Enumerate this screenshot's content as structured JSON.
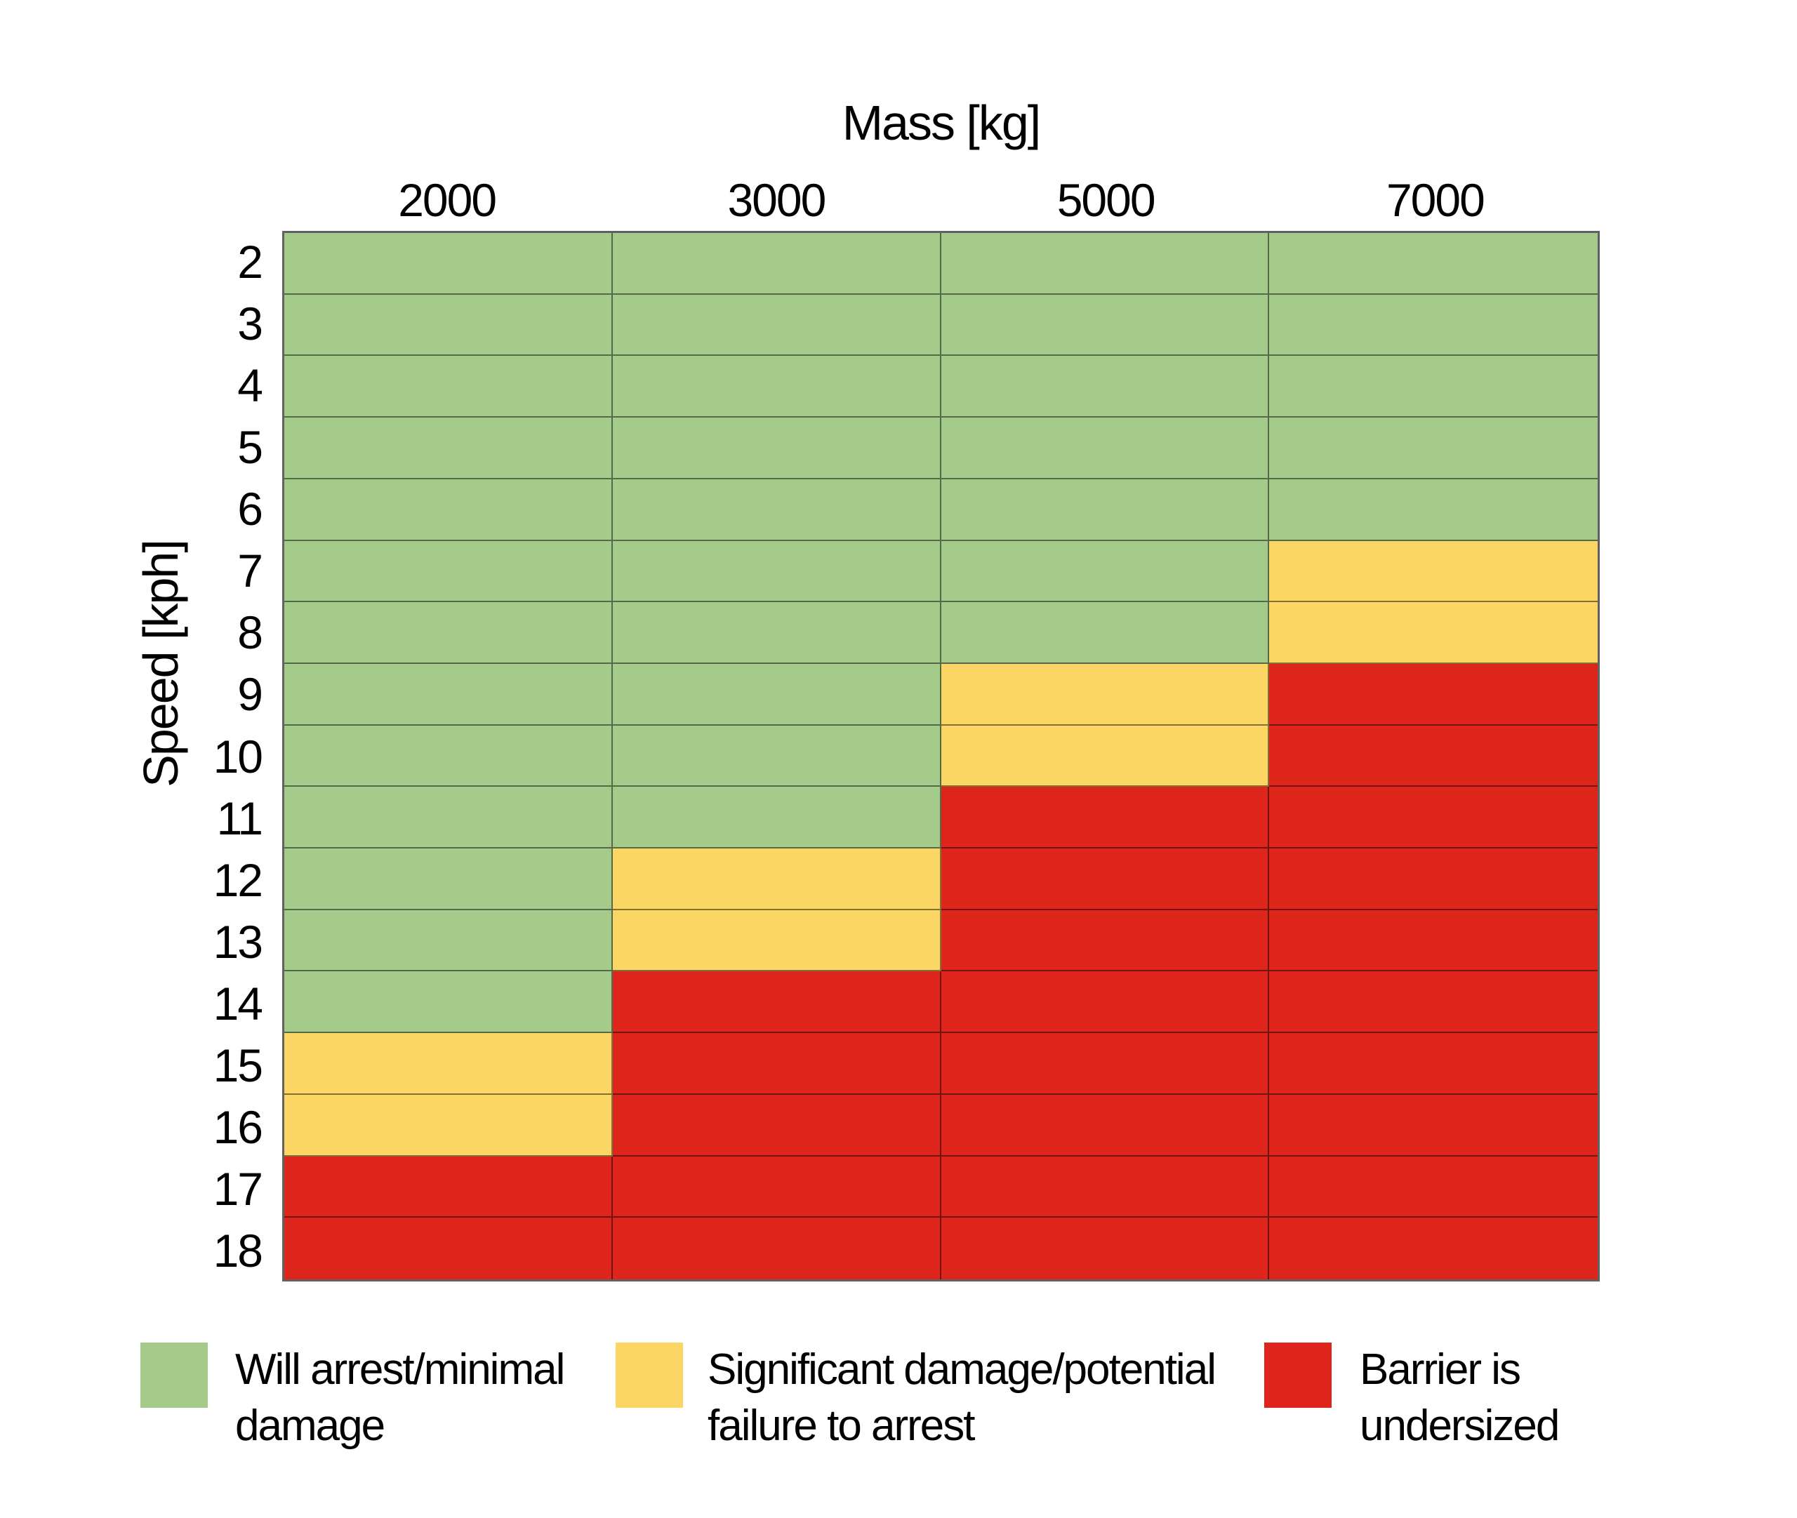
{
  "chart_data": {
    "type": "heatmap",
    "x_axis_label": "Mass [kg]",
    "y_axis_label": "Speed [kph]",
    "x_categories": [
      "2000",
      "3000",
      "5000",
      "7000"
    ],
    "y_categories": [
      "2",
      "3",
      "4",
      "5",
      "6",
      "7",
      "8",
      "9",
      "10",
      "11",
      "12",
      "13",
      "14",
      "15",
      "16",
      "17",
      "18"
    ],
    "status_colors": {
      "green": "#a5cb8a",
      "yellow": "#fcd664",
      "red": "#de251b"
    },
    "grid_line_color": "rgba(0,0,0,0.48)",
    "grid": "on",
    "legend_position": "bottom",
    "cells": [
      [
        "green",
        "green",
        "green",
        "green"
      ],
      [
        "green",
        "green",
        "green",
        "green"
      ],
      [
        "green",
        "green",
        "green",
        "green"
      ],
      [
        "green",
        "green",
        "green",
        "green"
      ],
      [
        "green",
        "green",
        "green",
        "green"
      ],
      [
        "green",
        "green",
        "green",
        "yellow"
      ],
      [
        "green",
        "green",
        "green",
        "yellow"
      ],
      [
        "green",
        "green",
        "yellow",
        "red"
      ],
      [
        "green",
        "green",
        "yellow",
        "red"
      ],
      [
        "green",
        "green",
        "red",
        "red"
      ],
      [
        "green",
        "yellow",
        "red",
        "red"
      ],
      [
        "green",
        "yellow",
        "red",
        "red"
      ],
      [
        "green",
        "red",
        "red",
        "red"
      ],
      [
        "yellow",
        "red",
        "red",
        "red"
      ],
      [
        "yellow",
        "red",
        "red",
        "red"
      ],
      [
        "red",
        "red",
        "red",
        "red"
      ],
      [
        "red",
        "red",
        "red",
        "red"
      ]
    ]
  },
  "legend": {
    "items": [
      {
        "status": "green",
        "label": "Will arrest/minimal\ndamage"
      },
      {
        "status": "yellow",
        "label": "Significant damage/potential\nfailure to arrest"
      },
      {
        "status": "red",
        "label": "Barrier is\nundersized"
      }
    ]
  }
}
